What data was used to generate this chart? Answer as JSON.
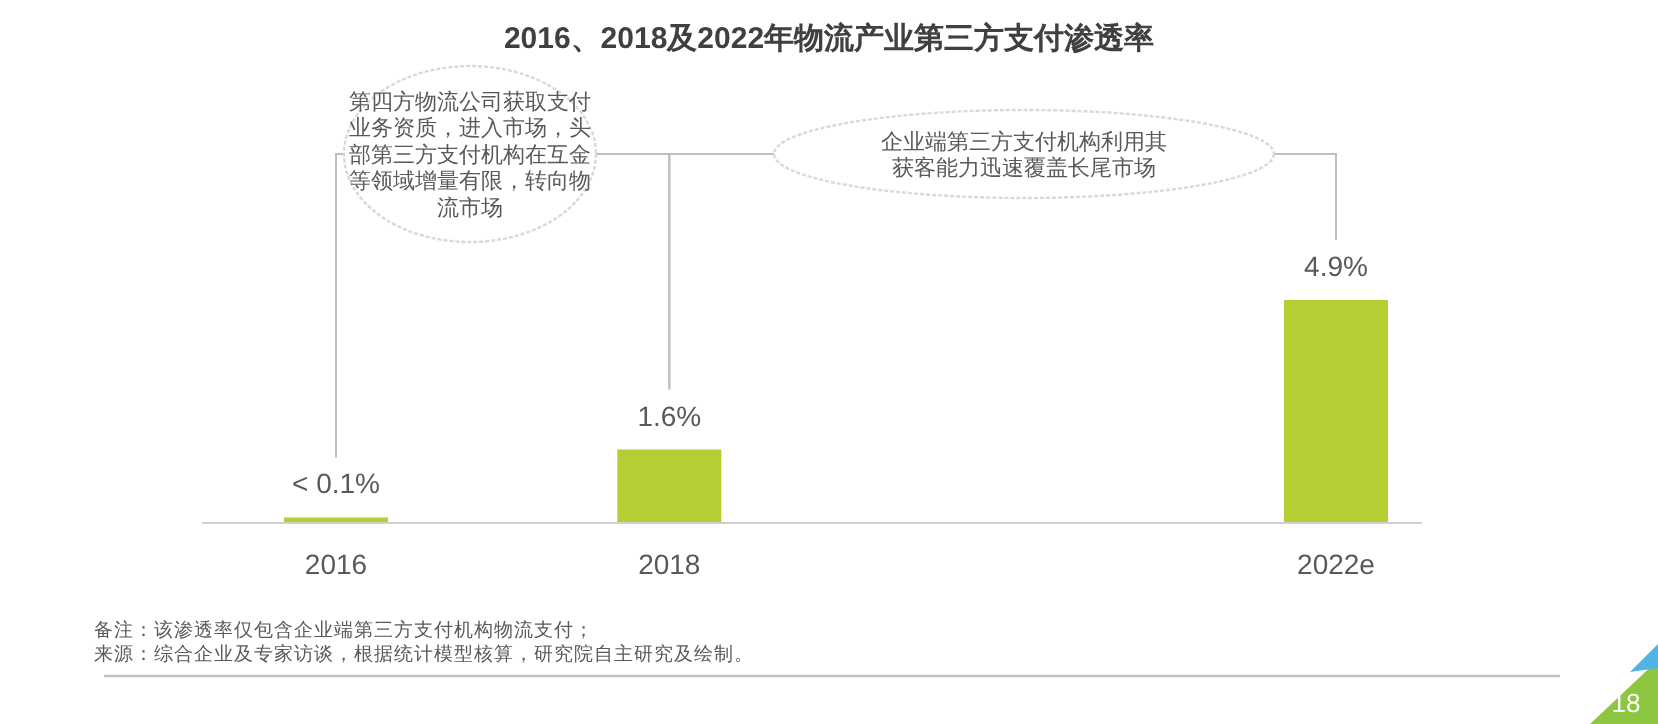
{
  "chart_data": {
    "type": "bar",
    "title": "2016、2018及2022年物流产业第三方支付渗透率",
    "categories": [
      "2016",
      "2018",
      null,
      "2022e"
    ],
    "values": [
      0.1,
      1.6,
      null,
      4.9
    ],
    "value_labels": [
      "< 0.1%",
      "1.6%",
      null,
      "4.9%"
    ],
    "color": "#b3cf33",
    "annotations": [
      "第四方物流公司获取支付业务资质，进入市场，头部第三方支付机构在互金等领域增量有限，转向物流市场",
      "企业端第三方支付机构利用其获客能力迅速覆盖长尾市场",
      "备注：该渗透率仅包含企业端第三方支付机构物流支付；",
      "来源：综合企业及专家访谈，根据统计模型核算，研究院自主研究及绘制。",
      "18"
    ]
  }
}
